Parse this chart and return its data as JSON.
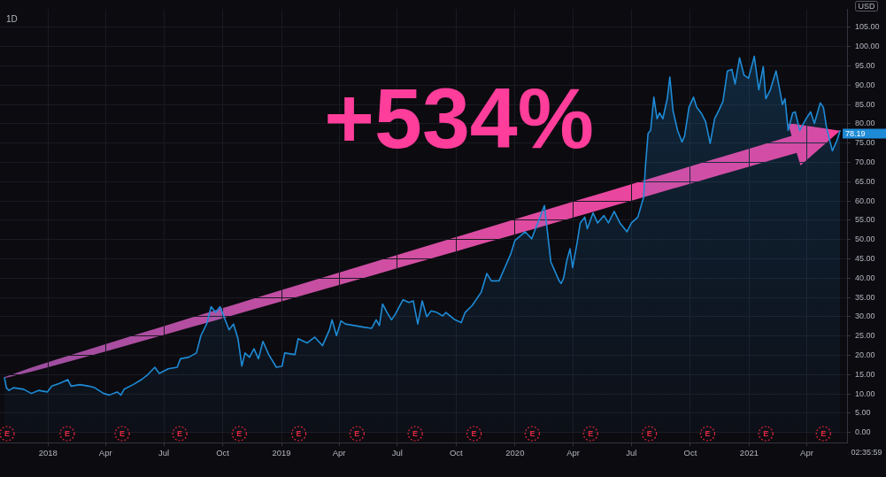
{
  "chart_data": {
    "type": "area",
    "title": "1D",
    "ylabel": "USD",
    "x": [
      "2017-10-25",
      "2017-10-28",
      "2017-11-01",
      "2017-11-08",
      "2017-11-24",
      "2017-12-06",
      "2017-12-17",
      "2017-12-31",
      "2018-01-07",
      "2018-01-19",
      "2018-02-01",
      "2018-02-06",
      "2018-02-20",
      "2018-03-06",
      "2018-03-15",
      "2018-03-29",
      "2018-04-07",
      "2018-04-19",
      "2018-04-25",
      "2018-04-30",
      "2018-05-14",
      "2018-05-28",
      "2018-06-06",
      "2018-06-17",
      "2018-06-24",
      "2018-07-08",
      "2018-07-22",
      "2018-07-27",
      "2018-08-09",
      "2018-08-21",
      "2018-08-28",
      "2018-09-06",
      "2018-09-13",
      "2018-09-20",
      "2018-09-27",
      "2018-10-04",
      "2018-10-11",
      "2018-10-18",
      "2018-10-25",
      "2018-10-31",
      "2018-11-05",
      "2018-11-12",
      "2018-11-19",
      "2018-11-26",
      "2018-12-03",
      "2018-12-12",
      "2018-12-24",
      "2019-01-02",
      "2019-01-06",
      "2019-01-22",
      "2019-01-27",
      "2019-02-10",
      "2019-02-22",
      "2019-03-06",
      "2019-03-17",
      "2019-03-21",
      "2019-03-28",
      "2019-04-04",
      "2019-04-11",
      "2019-04-25",
      "2019-05-09",
      "2019-05-22",
      "2019-05-29",
      "2019-06-03",
      "2019-06-08",
      "2019-06-15",
      "2019-06-22",
      "2019-06-28",
      "2019-07-10",
      "2019-07-19",
      "2019-07-26",
      "2019-08-02",
      "2019-08-09",
      "2019-08-16",
      "2019-08-23",
      "2019-09-01",
      "2019-09-10",
      "2019-09-15",
      "2019-09-29",
      "2019-10-09",
      "2019-10-15",
      "2019-10-26",
      "2019-11-09",
      "2019-11-18",
      "2019-11-25",
      "2019-12-07",
      "2019-12-16",
      "2019-12-25",
      "2020-01-01",
      "2020-01-17",
      "2020-01-27",
      "2020-02-16",
      "2020-02-26",
      "2020-03-10",
      "2020-03-13",
      "2020-03-17",
      "2020-03-22",
      "2020-03-27",
      "2020-03-31",
      "2020-04-07",
      "2020-04-12",
      "2020-04-19",
      "2020-04-23",
      "2020-05-02",
      "2020-05-09",
      "2020-05-19",
      "2020-05-26",
      "2020-06-04",
      "2020-06-13",
      "2020-06-24",
      "2020-07-01",
      "2020-07-11",
      "2020-07-20",
      "2020-07-23",
      "2020-07-27",
      "2020-07-31",
      "2020-08-05",
      "2020-08-10",
      "2020-08-14",
      "2020-08-19",
      "2020-08-26",
      "2020-08-30",
      "2020-09-04",
      "2020-09-11",
      "2020-09-18",
      "2020-09-22",
      "2020-09-29",
      "2020-10-06",
      "2020-10-11",
      "2020-10-18",
      "2020-10-25",
      "2020-11-01",
      "2020-11-08",
      "2020-11-15",
      "2020-11-21",
      "2020-11-28",
      "2020-12-05",
      "2020-12-10",
      "2020-12-17",
      "2020-12-24",
      "2020-12-31",
      "2021-01-09",
      "2021-01-16",
      "2021-01-23",
      "2021-01-27",
      "2021-02-03",
      "2021-02-12",
      "2021-02-17",
      "2021-02-22",
      "2021-02-26",
      "2021-03-03",
      "2021-03-10",
      "2021-03-14",
      "2021-03-21",
      "2021-03-31",
      "2021-04-07",
      "2021-04-13",
      "2021-04-22",
      "2021-04-27",
      "2021-05-02",
      "2021-05-11",
      "2021-05-18",
      "2021-05-23"
    ],
    "values": [
      14.2,
      11.6,
      10.9,
      11.6,
      11.2,
      10.1,
      10.9,
      10.5,
      12.0,
      12.7,
      13.7,
      12.0,
      12.4,
      12.0,
      11.6,
      10.1,
      9.7,
      10.5,
      9.7,
      11.2,
      12.4,
      13.8,
      15.0,
      16.9,
      15.3,
      16.5,
      16.9,
      19.1,
      19.5,
      20.6,
      25.1,
      28.1,
      32.6,
      31.1,
      32.6,
      29.6,
      26.6,
      28.1,
      24.3,
      17.2,
      20.6,
      19.5,
      21.7,
      19.1,
      23.6,
      20.2,
      16.9,
      17.2,
      20.6,
      20.2,
      24.3,
      23.2,
      24.7,
      22.5,
      26.6,
      29.2,
      25.1,
      28.9,
      28.1,
      27.7,
      27.3,
      27.0,
      29.2,
      27.7,
      33.3,
      31.1,
      29.2,
      30.7,
      34.4,
      33.7,
      34.1,
      28.1,
      34.1,
      30.0,
      31.5,
      31.1,
      30.2,
      31.1,
      29.2,
      28.5,
      31.1,
      32.9,
      36.3,
      41.2,
      39.3,
      39.3,
      42.7,
      46.1,
      49.8,
      52.0,
      50.2,
      58.8,
      44.2,
      39.3,
      38.6,
      40.0,
      44.6,
      47.6,
      42.7,
      49.1,
      54.3,
      55.8,
      52.8,
      56.9,
      54.3,
      56.2,
      54.3,
      57.3,
      54.3,
      52.0,
      54.3,
      55.8,
      61.0,
      69.3,
      77.5,
      78.3,
      86.9,
      81.3,
      82.8,
      81.3,
      86.5,
      92.1,
      83.4,
      78.3,
      75.3,
      76.8,
      84.3,
      86.9,
      84.3,
      82.8,
      80.5,
      74.9,
      81.3,
      83.6,
      85.8,
      93.7,
      94.1,
      90.3,
      97.1,
      92.6,
      91.8,
      97.5,
      88.8,
      94.8,
      86.5,
      88.8,
      93.7,
      89.5,
      85.0,
      86.5,
      78.3,
      82.8,
      83.1,
      78.3,
      81.3,
      83.1,
      80.1,
      85.4,
      84.3,
      79.0,
      73.0,
      75.6,
      78.19
    ],
    "value_labels": [
      null,
      null,
      null,
      null,
      null,
      null,
      null,
      null,
      null,
      null,
      null,
      null,
      null,
      null,
      null,
      null,
      null,
      null,
      null,
      null,
      null,
      null,
      null,
      null,
      null,
      null,
      null,
      null,
      null,
      null,
      null,
      null,
      null,
      null,
      null,
      null,
      null,
      null,
      null,
      null,
      null,
      null,
      null,
      null,
      null,
      null,
      null,
      null,
      null,
      null,
      null,
      null,
      null,
      null,
      null,
      null,
      null,
      null,
      null,
      null,
      null,
      null,
      null,
      null,
      null,
      null,
      null,
      null,
      null,
      null,
      null,
      null,
      null,
      null,
      null,
      null,
      null,
      null,
      null,
      null,
      null,
      null,
      null,
      null,
      null,
      null,
      null,
      null,
      null,
      null,
      null,
      null,
      null,
      null,
      null,
      null,
      null,
      null,
      null,
      null,
      null,
      null,
      null,
      null,
      null,
      null,
      null,
      null,
      null,
      null,
      null,
      null,
      null,
      null,
      null,
      null,
      null,
      null,
      null,
      null,
      null,
      null,
      null,
      null,
      null,
      null,
      null,
      null,
      null,
      null,
      null,
      null,
      null,
      null,
      null,
      null,
      null,
      null,
      null,
      null,
      null,
      null,
      null,
      null,
      null,
      null,
      null,
      null,
      null,
      null,
      null,
      null,
      null,
      null,
      null,
      null,
      null,
      null,
      null,
      null,
      null,
      null,
      "78.19"
    ],
    "color": "#1e8bd6",
    "xlim": [
      "2017-10-18",
      "2021-06-03"
    ],
    "xticks": [
      {
        "value": "2018-01-01",
        "label": "2018"
      },
      {
        "value": "2018-04-01",
        "label": "Apr"
      },
      {
        "value": "2018-07-01",
        "label": "Jul"
      },
      {
        "value": "2018-10-01",
        "label": "Oct"
      },
      {
        "value": "2019-01-01",
        "label": "2019"
      },
      {
        "value": "2019-04-01",
        "label": "Apr"
      },
      {
        "value": "2019-07-01",
        "label": "Jul"
      },
      {
        "value": "2019-10-01",
        "label": "Oct"
      },
      {
        "value": "2020-01-01",
        "label": "2020"
      },
      {
        "value": "2020-04-01",
        "label": "Apr"
      },
      {
        "value": "2020-07-01",
        "label": "Jul"
      },
      {
        "value": "2020-10-01",
        "label": "Oct"
      },
      {
        "value": "2021-01-01",
        "label": "2021"
      },
      {
        "value": "2021-04-01",
        "label": "Apr"
      }
    ],
    "ylim": [
      -2.6,
      109.7
    ],
    "yticks": [
      {
        "value": 0,
        "label": "0.00"
      },
      {
        "value": 5,
        "label": "5.00"
      },
      {
        "value": 10,
        "label": "10.00"
      },
      {
        "value": 15,
        "label": "15.00"
      },
      {
        "value": 20,
        "label": "20.00"
      },
      {
        "value": 25,
        "label": "25.00"
      },
      {
        "value": 30,
        "label": "30.00"
      },
      {
        "value": 35,
        "label": "35.00"
      },
      {
        "value": 40,
        "label": "40.00"
      },
      {
        "value": 45,
        "label": "45.00"
      },
      {
        "value": 50,
        "label": "50.00"
      },
      {
        "value": 55,
        "label": "55.00"
      },
      {
        "value": 60,
        "label": "60.00"
      },
      {
        "value": 65,
        "label": "65.00"
      },
      {
        "value": 70,
        "label": "70.00"
      },
      {
        "value": 75,
        "label": "75.00"
      },
      {
        "value": 80,
        "label": "80.00"
      },
      {
        "value": 85,
        "label": "85.00"
      },
      {
        "value": 90,
        "label": "90.00"
      },
      {
        "value": 95,
        "label": "95.00"
      },
      {
        "value": 100,
        "label": "100.00"
      },
      {
        "value": 105,
        "label": "105.00"
      }
    ],
    "grid": true,
    "annotations": [
      "+534%",
      "02:35:59",
      {
        "text": "E",
        "x": "2017-10-29"
      },
      {
        "text": "E",
        "x": "2018-01-31"
      },
      {
        "text": "E",
        "x": "2018-04-27"
      },
      {
        "text": "E",
        "x": "2018-07-26"
      },
      {
        "text": "E",
        "x": "2018-10-27"
      },
      {
        "text": "E",
        "x": "2019-01-28"
      },
      {
        "text": "E",
        "x": "2019-04-29"
      },
      {
        "text": "E",
        "x": "2019-07-29"
      },
      {
        "text": "E",
        "x": "2019-10-29"
      },
      {
        "text": "E",
        "x": "2020-01-28"
      },
      {
        "text": "E",
        "x": "2020-04-28"
      },
      {
        "text": "E",
        "x": "2020-07-29"
      },
      {
        "text": "E",
        "x": "2020-10-28"
      },
      {
        "text": "E",
        "x": "2021-01-27"
      },
      {
        "text": "E",
        "x": "2021-04-27"
      }
    ]
  }
}
